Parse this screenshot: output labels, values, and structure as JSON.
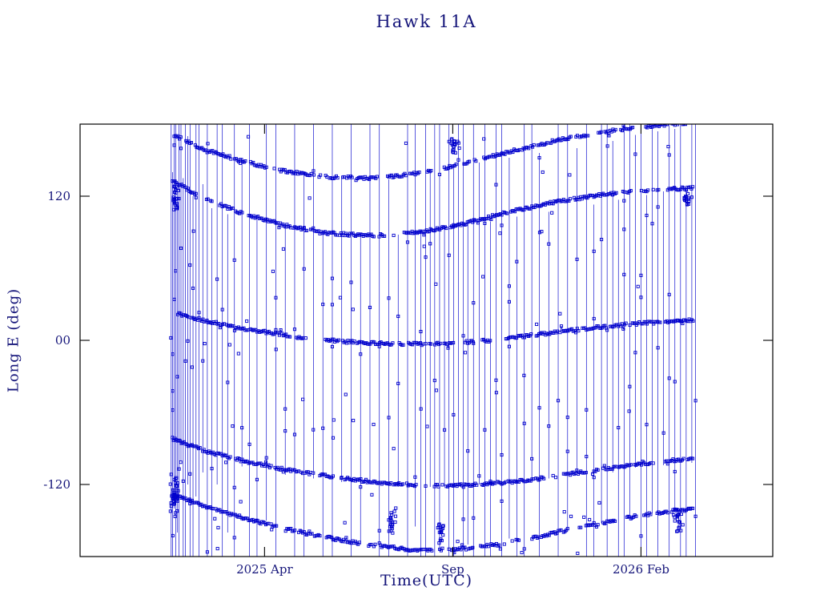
{
  "page": {
    "background": "#ffffff"
  },
  "colors": {
    "data": "#0000cc",
    "text": "#15157a",
    "axis": "#000000"
  },
  "title": "Hawk 11A",
  "axes": {
    "ylabel": "Long E (deg)",
    "xlabel": "Time(UTC)"
  },
  "chart_data": {
    "type": "scatter",
    "title": "Hawk 11A",
    "xlabel": "Time(UTC)",
    "ylabel": "Long E (deg)",
    "description": "Satellite east-longitude versus time. Dense dashed arcs of small open-square markers near +120 deg, 0 deg and -120 deg (with clipped arcs near +/-180) drift slowly over the year; thin vertical lines mark rapid longitude transitions / wrap-around between bands.",
    "x_range": [
      0,
      18.4
    ],
    "y_range": [
      -180,
      180
    ],
    "x_ticks": [
      {
        "m": 4.9,
        "label": "2025 Apr"
      },
      {
        "m": 9.9,
        "label": "Sep"
      },
      {
        "m": 14.9,
        "label": "2026 Feb"
      }
    ],
    "y_ticks": [
      {
        "v": 120,
        "label": "120"
      },
      {
        "v": 0,
        "label": "00"
      },
      {
        "v": -120,
        "label": "-120"
      }
    ],
    "marker": "open-square",
    "color": "#0000cc",
    "seed": 1337,
    "sample_step_month": 0.035,
    "jitter_deg": 1.2,
    "bands": [
      {
        "name": "band-top-clipped",
        "points": [
          [
            2.5,
            171
          ],
          [
            3.2,
            160
          ],
          [
            4.2,
            150
          ],
          [
            5.4,
            141
          ],
          [
            6.6,
            136
          ],
          [
            7.8,
            135
          ],
          [
            9.0,
            139
          ],
          [
            10.2,
            147
          ],
          [
            11.4,
            157
          ],
          [
            12.6,
            166
          ],
          [
            13.8,
            173
          ],
          [
            15.0,
            178
          ],
          [
            16.3,
            181
          ]
        ]
      },
      {
        "name": "band-plus-120",
        "points": [
          [
            2.45,
            133
          ],
          [
            3.2,
            120
          ],
          [
            4.2,
            107
          ],
          [
            5.4,
            96
          ],
          [
            6.6,
            89
          ],
          [
            7.8,
            87
          ],
          [
            9.0,
            90
          ],
          [
            10.2,
            97
          ],
          [
            11.4,
            107
          ],
          [
            12.6,
            115
          ],
          [
            13.8,
            121
          ],
          [
            15.0,
            125
          ],
          [
            16.35,
            127
          ]
        ]
      },
      {
        "name": "band-zero",
        "points": [
          [
            2.6,
            22
          ],
          [
            3.5,
            15
          ],
          [
            4.5,
            9
          ],
          [
            5.7,
            3
          ],
          [
            7.0,
            -1
          ],
          [
            8.3,
            -3
          ],
          [
            9.6,
            -3
          ],
          [
            10.9,
            0
          ],
          [
            12.2,
            5
          ],
          [
            13.5,
            10
          ],
          [
            14.8,
            14
          ],
          [
            16.3,
            17
          ]
        ]
      },
      {
        "name": "band-minus-120",
        "points": [
          [
            2.45,
            -82
          ],
          [
            3.3,
            -92
          ],
          [
            4.3,
            -100
          ],
          [
            5.5,
            -108
          ],
          [
            6.8,
            -114
          ],
          [
            8.1,
            -119
          ],
          [
            9.4,
            -121
          ],
          [
            10.7,
            -120
          ],
          [
            12.0,
            -116
          ],
          [
            13.3,
            -110
          ],
          [
            14.6,
            -104
          ],
          [
            16.3,
            -98
          ]
        ]
      },
      {
        "name": "band-bottom-clipped",
        "points": [
          [
            2.45,
            -128
          ],
          [
            3.5,
            -140
          ],
          [
            4.8,
            -152
          ],
          [
            6.2,
            -162
          ],
          [
            7.6,
            -170
          ],
          [
            9.0,
            -175
          ],
          [
            10.4,
            -173
          ],
          [
            11.8,
            -166
          ],
          [
            13.2,
            -156
          ],
          [
            14.6,
            -147
          ],
          [
            16.3,
            -140
          ]
        ]
      }
    ],
    "vertical_lines": [
      [
        2.42,
        180,
        -180
      ],
      [
        2.46,
        140,
        -180
      ],
      [
        2.5,
        180,
        -140
      ],
      [
        2.54,
        180,
        -180
      ],
      [
        2.58,
        125,
        -160
      ],
      [
        2.63,
        180,
        -180
      ],
      [
        2.68,
        180,
        -100
      ],
      [
        2.74,
        135,
        -180
      ],
      [
        2.8,
        180,
        -180
      ],
      [
        2.86,
        170,
        -120
      ],
      [
        2.92,
        180,
        -180
      ],
      [
        3.0,
        120,
        -180
      ],
      [
        3.08,
        180,
        -130
      ],
      [
        3.16,
        180,
        -180
      ],
      [
        3.26,
        130,
        -110
      ],
      [
        3.38,
        180,
        -180
      ],
      [
        3.5,
        110,
        -180
      ],
      [
        3.64,
        180,
        -120
      ],
      [
        3.78,
        180,
        -180
      ],
      [
        3.92,
        105,
        -160
      ],
      [
        4.1,
        180,
        -180
      ],
      [
        4.3,
        150,
        -105
      ],
      [
        4.5,
        180,
        -180
      ],
      [
        4.7,
        100,
        -180
      ],
      [
        4.95,
        180,
        -150
      ],
      [
        5.2,
        180,
        -180
      ],
      [
        5.45,
        95,
        -112
      ],
      [
        5.7,
        180,
        -180
      ],
      [
        5.95,
        140,
        -180
      ],
      [
        6.2,
        180,
        -115
      ],
      [
        6.45,
        90,
        -180
      ],
      [
        6.7,
        180,
        -180
      ],
      [
        6.95,
        135,
        -118
      ],
      [
        7.2,
        180,
        -180
      ],
      [
        7.45,
        88,
        -170
      ],
      [
        7.7,
        180,
        -120
      ],
      [
        7.95,
        180,
        -180
      ],
      [
        8.2,
        134,
        -180
      ],
      [
        8.45,
        88,
        -122
      ],
      [
        8.7,
        180,
        -180
      ],
      [
        8.9,
        180,
        -155
      ],
      [
        9.05,
        92,
        -180
      ],
      [
        9.18,
        180,
        -180
      ],
      [
        9.3,
        140,
        -122
      ],
      [
        9.42,
        180,
        -180
      ],
      [
        9.55,
        180,
        -175
      ],
      [
        9.68,
        94,
        -121
      ],
      [
        9.8,
        180,
        -180
      ],
      [
        9.92,
        145,
        -180
      ],
      [
        10.05,
        180,
        -120
      ],
      [
        10.18,
        180,
        -180
      ],
      [
        10.3,
        97,
        -170
      ],
      [
        10.45,
        180,
        -180
      ],
      [
        10.6,
        148,
        -120
      ],
      [
        10.75,
        180,
        -180
      ],
      [
        10.9,
        99,
        -180
      ],
      [
        11.05,
        180,
        -119
      ],
      [
        11.2,
        180,
        -180
      ],
      [
        11.4,
        152,
        -165
      ],
      [
        11.6,
        103,
        -180
      ],
      [
        11.8,
        180,
        -180
      ],
      [
        12.0,
        180,
        -117
      ],
      [
        12.2,
        156,
        -180
      ],
      [
        12.45,
        107,
        -115
      ],
      [
        12.7,
        180,
        -180
      ],
      [
        12.95,
        180,
        -158
      ],
      [
        13.2,
        160,
        -112
      ],
      [
        13.45,
        180,
        -180
      ],
      [
        13.65,
        113,
        -180
      ],
      [
        13.85,
        180,
        -152
      ],
      [
        14.0,
        180,
        -180
      ],
      [
        14.15,
        166,
        -110
      ],
      [
        14.3,
        117,
        -180
      ],
      [
        14.45,
        180,
        -180
      ],
      [
        14.6,
        180,
        -148
      ],
      [
        14.75,
        171,
        -106
      ],
      [
        14.9,
        180,
        -180
      ],
      [
        15.05,
        121,
        -180
      ],
      [
        15.2,
        180,
        -144
      ],
      [
        15.35,
        174,
        -180
      ],
      [
        15.5,
        124,
        -104
      ],
      [
        15.65,
        180,
        -180
      ],
      [
        15.8,
        176,
        -141
      ],
      [
        15.95,
        180,
        -180
      ],
      [
        16.1,
        126,
        -180
      ],
      [
        16.25,
        180,
        -102
      ],
      [
        16.35,
        180,
        -180
      ]
    ],
    "clusters": [
      {
        "m": 2.5,
        "deg": -130,
        "n": 40,
        "sm": 0.12,
        "sd": 18
      },
      {
        "m": 2.55,
        "deg": 118,
        "n": 24,
        "sm": 0.1,
        "sd": 12
      },
      {
        "m": 8.3,
        "deg": -150,
        "n": 22,
        "sm": 0.12,
        "sd": 14
      },
      {
        "m": 9.6,
        "deg": -160,
        "n": 18,
        "sm": 0.1,
        "sd": 12
      },
      {
        "m": 9.95,
        "deg": 163,
        "n": 20,
        "sm": 0.15,
        "sd": 10
      },
      {
        "m": 15.9,
        "deg": -150,
        "n": 20,
        "sm": 0.15,
        "sd": 15
      },
      {
        "m": 16.1,
        "deg": 118,
        "n": 16,
        "sm": 0.1,
        "sd": 8
      }
    ],
    "stray_markers": {
      "count": 70
    }
  }
}
